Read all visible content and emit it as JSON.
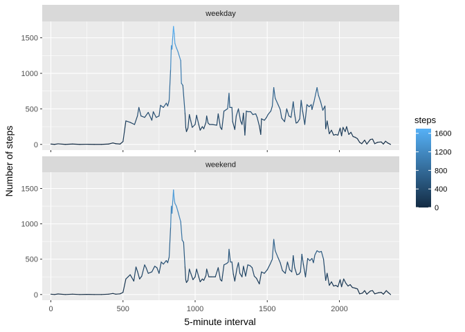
{
  "chart_data": {
    "type": "line",
    "xlabel": "5-minute interval",
    "ylabel": "Number of steps",
    "x_ticks": [
      0,
      500,
      1000,
      1500,
      2000
    ],
    "y_ticks": [
      0,
      500,
      1000,
      1500
    ],
    "xlim": [
      -60,
      2415
    ],
    "ylim": [
      -80,
      1730
    ],
    "grid": true,
    "color_scale": {
      "title": "steps",
      "low_color": "#132B43",
      "high_color": "#56B1F7",
      "range": [
        0,
        1700
      ],
      "breaks": [
        0,
        400,
        800,
        1200,
        1600
      ]
    },
    "panels": [
      {
        "name": "weekday",
        "points": [
          [
            0,
            5
          ],
          [
            25,
            0
          ],
          [
            50,
            8
          ],
          [
            100,
            0
          ],
          [
            150,
            5
          ],
          [
            200,
            0
          ],
          [
            250,
            2
          ],
          [
            300,
            0
          ],
          [
            350,
            0
          ],
          [
            400,
            5
          ],
          [
            430,
            20
          ],
          [
            450,
            10
          ],
          [
            480,
            5
          ],
          [
            500,
            40
          ],
          [
            520,
            330
          ],
          [
            550,
            310
          ],
          [
            580,
            280
          ],
          [
            600,
            400
          ],
          [
            610,
            520
          ],
          [
            625,
            400
          ],
          [
            650,
            380
          ],
          [
            675,
            450
          ],
          [
            700,
            340
          ],
          [
            710,
            460
          ],
          [
            730,
            380
          ],
          [
            750,
            400
          ],
          [
            760,
            550
          ],
          [
            780,
            520
          ],
          [
            800,
            580
          ],
          [
            810,
            540
          ],
          [
            820,
            620
          ],
          [
            830,
            1050
          ],
          [
            835,
            1390
          ],
          [
            840,
            1340
          ],
          [
            845,
            1520
          ],
          [
            850,
            1660
          ],
          [
            855,
            1560
          ],
          [
            860,
            1420
          ],
          [
            870,
            1360
          ],
          [
            880,
            1310
          ],
          [
            900,
            1180
          ],
          [
            905,
            860
          ],
          [
            915,
            830
          ],
          [
            930,
            440
          ],
          [
            935,
            240
          ],
          [
            940,
            180
          ],
          [
            950,
            230
          ],
          [
            960,
            420
          ],
          [
            970,
            330
          ],
          [
            980,
            240
          ],
          [
            1000,
            280
          ],
          [
            1010,
            410
          ],
          [
            1025,
            280
          ],
          [
            1035,
            200
          ],
          [
            1050,
            250
          ],
          [
            1060,
            220
          ],
          [
            1075,
            310
          ],
          [
            1080,
            400
          ],
          [
            1090,
            300
          ],
          [
            1100,
            280
          ],
          [
            1120,
            280
          ],
          [
            1150,
            270
          ],
          [
            1160,
            430
          ],
          [
            1175,
            240
          ],
          [
            1185,
            210
          ],
          [
            1200,
            470
          ],
          [
            1210,
            480
          ],
          [
            1215,
            490
          ],
          [
            1225,
            500
          ],
          [
            1235,
            720
          ],
          [
            1240,
            520
          ],
          [
            1255,
            520
          ],
          [
            1260,
            320
          ],
          [
            1275,
            210
          ],
          [
            1285,
            400
          ],
          [
            1300,
            500
          ],
          [
            1315,
            330
          ],
          [
            1325,
            280
          ],
          [
            1335,
            440
          ],
          [
            1345,
            130
          ],
          [
            1355,
            470
          ],
          [
            1365,
            460
          ],
          [
            1385,
            460
          ],
          [
            1400,
            420
          ],
          [
            1420,
            430
          ],
          [
            1430,
            380
          ],
          [
            1445,
            260
          ],
          [
            1455,
            140
          ],
          [
            1460,
            360
          ],
          [
            1480,
            340
          ],
          [
            1495,
            380
          ],
          [
            1505,
            420
          ],
          [
            1525,
            470
          ],
          [
            1535,
            540
          ],
          [
            1545,
            800
          ],
          [
            1555,
            650
          ],
          [
            1575,
            560
          ],
          [
            1590,
            490
          ],
          [
            1600,
            370
          ],
          [
            1620,
            320
          ],
          [
            1635,
            500
          ],
          [
            1650,
            400
          ],
          [
            1665,
            380
          ],
          [
            1680,
            600
          ],
          [
            1690,
            420
          ],
          [
            1700,
            300
          ],
          [
            1710,
            310
          ],
          [
            1725,
            360
          ],
          [
            1735,
            620
          ],
          [
            1745,
            470
          ],
          [
            1760,
            280
          ],
          [
            1775,
            560
          ],
          [
            1790,
            530
          ],
          [
            1805,
            560
          ],
          [
            1810,
            490
          ],
          [
            1825,
            610
          ],
          [
            1845,
            800
          ],
          [
            1855,
            690
          ],
          [
            1870,
            600
          ],
          [
            1885,
            480
          ],
          [
            1900,
            540
          ],
          [
            1905,
            220
          ],
          [
            1915,
            330
          ],
          [
            1930,
            150
          ],
          [
            1945,
            200
          ],
          [
            1960,
            130
          ],
          [
            1975,
            140
          ],
          [
            1990,
            130
          ],
          [
            2005,
            230
          ],
          [
            2015,
            120
          ],
          [
            2025,
            240
          ],
          [
            2040,
            180
          ],
          [
            2050,
            250
          ],
          [
            2065,
            140
          ],
          [
            2080,
            170
          ],
          [
            2095,
            110
          ],
          [
            2110,
            100
          ],
          [
            2125,
            80
          ],
          [
            2140,
            30
          ],
          [
            2155,
            10
          ],
          [
            2175,
            60
          ],
          [
            2190,
            5
          ],
          [
            2215,
            70
          ],
          [
            2230,
            75
          ],
          [
            2245,
            10
          ],
          [
            2265,
            30
          ],
          [
            2290,
            35
          ],
          [
            2305,
            5
          ],
          [
            2320,
            45
          ],
          [
            2335,
            20
          ],
          [
            2355,
            0
          ]
        ]
      },
      {
        "name": "weekend",
        "points": [
          [
            0,
            5
          ],
          [
            25,
            0
          ],
          [
            50,
            8
          ],
          [
            100,
            0
          ],
          [
            150,
            5
          ],
          [
            200,
            0
          ],
          [
            250,
            2
          ],
          [
            300,
            0
          ],
          [
            350,
            0
          ],
          [
            400,
            5
          ],
          [
            430,
            15
          ],
          [
            450,
            5
          ],
          [
            480,
            10
          ],
          [
            500,
            30
          ],
          [
            520,
            220
          ],
          [
            550,
            280
          ],
          [
            575,
            190
          ],
          [
            590,
            390
          ],
          [
            600,
            330
          ],
          [
            615,
            220
          ],
          [
            630,
            260
          ],
          [
            650,
            420
          ],
          [
            660,
            380
          ],
          [
            675,
            300
          ],
          [
            700,
            320
          ],
          [
            720,
            400
          ],
          [
            735,
            380
          ],
          [
            750,
            300
          ],
          [
            765,
            460
          ],
          [
            780,
            430
          ],
          [
            800,
            480
          ],
          [
            810,
            450
          ],
          [
            820,
            530
          ],
          [
            830,
            950
          ],
          [
            835,
            1250
          ],
          [
            840,
            1150
          ],
          [
            845,
            1330
          ],
          [
            850,
            1480
          ],
          [
            855,
            1350
          ],
          [
            860,
            1290
          ],
          [
            870,
            1250
          ],
          [
            880,
            1180
          ],
          [
            900,
            1030
          ],
          [
            910,
            770
          ],
          [
            920,
            740
          ],
          [
            930,
            390
          ],
          [
            935,
            210
          ],
          [
            940,
            170
          ],
          [
            950,
            200
          ],
          [
            960,
            360
          ],
          [
            970,
            300
          ],
          [
            985,
            210
          ],
          [
            1000,
            250
          ],
          [
            1010,
            360
          ],
          [
            1025,
            250
          ],
          [
            1035,
            180
          ],
          [
            1050,
            220
          ],
          [
            1060,
            200
          ],
          [
            1075,
            270
          ],
          [
            1080,
            360
          ],
          [
            1095,
            250
          ],
          [
            1110,
            250
          ],
          [
            1140,
            250
          ],
          [
            1160,
            380
          ],
          [
            1175,
            210
          ],
          [
            1185,
            190
          ],
          [
            1200,
            420
          ],
          [
            1210,
            430
          ],
          [
            1220,
            440
          ],
          [
            1230,
            460
          ],
          [
            1235,
            640
          ],
          [
            1245,
            460
          ],
          [
            1255,
            460
          ],
          [
            1265,
            290
          ],
          [
            1275,
            190
          ],
          [
            1290,
            370
          ],
          [
            1300,
            450
          ],
          [
            1310,
            300
          ],
          [
            1325,
            250
          ],
          [
            1335,
            400
          ],
          [
            1350,
            260
          ],
          [
            1365,
            420
          ],
          [
            1380,
            410
          ],
          [
            1395,
            380
          ],
          [
            1410,
            260
          ],
          [
            1425,
            230
          ],
          [
            1445,
            150
          ],
          [
            1460,
            320
          ],
          [
            1480,
            300
          ],
          [
            1500,
            350
          ],
          [
            1520,
            430
          ],
          [
            1535,
            500
          ],
          [
            1545,
            780
          ],
          [
            1555,
            620
          ],
          [
            1575,
            520
          ],
          [
            1590,
            450
          ],
          [
            1605,
            340
          ],
          [
            1625,
            300
          ],
          [
            1640,
            460
          ],
          [
            1655,
            350
          ],
          [
            1670,
            320
          ],
          [
            1680,
            550
          ],
          [
            1690,
            380
          ],
          [
            1705,
            280
          ],
          [
            1720,
            290
          ],
          [
            1730,
            320
          ],
          [
            1740,
            570
          ],
          [
            1750,
            430
          ],
          [
            1765,
            250
          ],
          [
            1780,
            510
          ],
          [
            1795,
            480
          ],
          [
            1810,
            510
          ],
          [
            1820,
            450
          ],
          [
            1830,
            560
          ],
          [
            1845,
            620
          ],
          [
            1860,
            600
          ],
          [
            1875,
            610
          ],
          [
            1890,
            500
          ],
          [
            1905,
            200
          ],
          [
            1915,
            300
          ],
          [
            1930,
            130
          ],
          [
            1945,
            180
          ],
          [
            1960,
            120
          ],
          [
            1975,
            130
          ],
          [
            1990,
            110
          ],
          [
            2005,
            210
          ],
          [
            2015,
            110
          ],
          [
            2030,
            220
          ],
          [
            2045,
            160
          ],
          [
            2060,
            120
          ],
          [
            2075,
            140
          ],
          [
            2090,
            100
          ],
          [
            2110,
            90
          ],
          [
            2125,
            80
          ],
          [
            2140,
            10
          ],
          [
            2160,
            20
          ],
          [
            2175,
            55
          ],
          [
            2190,
            5
          ],
          [
            2215,
            50
          ],
          [
            2230,
            55
          ],
          [
            2245,
            10
          ],
          [
            2270,
            25
          ],
          [
            2290,
            30
          ],
          [
            2305,
            5
          ],
          [
            2325,
            55
          ],
          [
            2340,
            25
          ],
          [
            2355,
            0
          ]
        ]
      }
    ]
  }
}
